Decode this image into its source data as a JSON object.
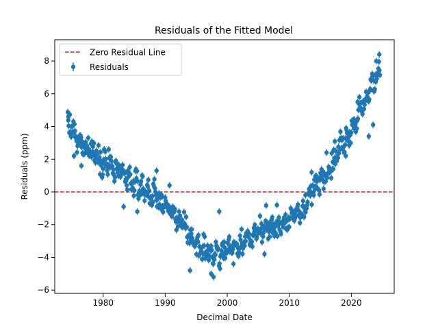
{
  "chart_data": {
    "type": "scatter",
    "title": "Residuals of the Fitted Model",
    "xlabel": "Decimal Date",
    "ylabel": "Residuals (ppm)",
    "xlim": [
      1972.2,
      2026.9
    ],
    "ylim": [
      -6.2,
      9.3
    ],
    "xticks": [
      1980,
      1990,
      2000,
      2010,
      2020
    ],
    "yticks": [
      -6,
      -4,
      -2,
      0,
      2,
      4,
      6,
      8
    ],
    "grid": false,
    "legend_position": "upper-left",
    "zero_line": {
      "y": 0,
      "label": "Zero Residual Line",
      "color": "#e8131a"
    },
    "series": [
      {
        "name": "Residuals",
        "color": "#1f77b4",
        "error_bar_ppm": 0.2,
        "trend_x": [
          1974.3,
          1976,
          1978,
          1980,
          1983,
          1986,
          1989,
          1992,
          1995,
          1998,
          2000,
          2003,
          2006,
          2009,
          2012,
          2014,
          2016,
          2018,
          2020,
          2022,
          2024.6
        ],
        "trend_y": [
          4.3,
          3.0,
          2.6,
          1.9,
          1.0,
          0.3,
          -0.4,
          -1.6,
          -3.2,
          -3.9,
          -3.5,
          -2.9,
          -2.3,
          -1.9,
          -1.2,
          0.2,
          1.3,
          2.6,
          3.9,
          5.4,
          7.6
        ],
        "n_points": 610,
        "sample_points": [
          [
            1974.4,
            4.6
          ],
          [
            1974.8,
            3.4
          ],
          [
            1975.3,
            2.2
          ],
          [
            1976.5,
            1.6
          ],
          [
            1977.6,
            3.3
          ],
          [
            1980.9,
            2.6
          ],
          [
            1983.3,
            -0.9
          ],
          [
            1985.5,
            -1.2
          ],
          [
            1988.6,
            1.3
          ],
          [
            1990.7,
            0.4
          ],
          [
            1994.0,
            -4.8
          ],
          [
            1997.4,
            -5.0
          ],
          [
            1997.8,
            -5.2
          ],
          [
            1998.7,
            -1.2
          ],
          [
            2001.0,
            -4.4
          ],
          [
            2006.0,
            -3.8
          ],
          [
            2008.0,
            -0.8
          ],
          [
            2012.6,
            -0.2
          ],
          [
            2013.6,
            1.2
          ],
          [
            2016.0,
            2.4
          ],
          [
            2019.1,
            2.2
          ],
          [
            2021.0,
            5.5
          ],
          [
            2022.8,
            3.4
          ],
          [
            2023.5,
            4.1
          ],
          [
            2024.0,
            8.0
          ],
          [
            2024.5,
            8.4
          ]
        ]
      }
    ]
  }
}
